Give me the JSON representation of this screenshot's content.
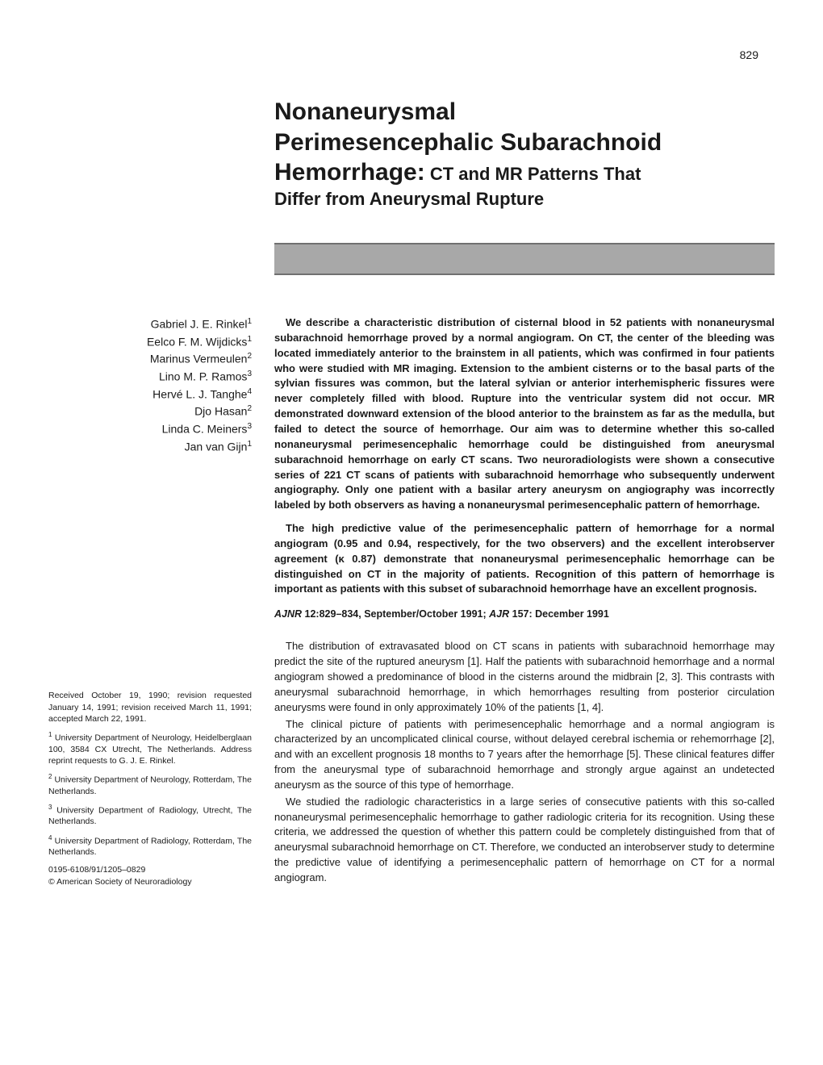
{
  "page_number": "829",
  "title": {
    "line1": "Nonaneurysmal",
    "line2": "Perimesencephalic Subarachnoid",
    "line3_bold": "Hemorrhage:",
    "line3_rest": " CT and MR Patterns That",
    "line4": "Differ from Aneurysmal Rupture"
  },
  "authors": [
    {
      "name": "Gabriel J. E. Rinkel",
      "aff": "1"
    },
    {
      "name": "Eelco F. M. Wijdicks",
      "aff": "1"
    },
    {
      "name": "Marinus Vermeulen",
      "aff": "2"
    },
    {
      "name": "Lino M. P. Ramos",
      "aff": "3"
    },
    {
      "name": "Hervé L. J. Tanghe",
      "aff": "4"
    },
    {
      "name": "Djo Hasan",
      "aff": "2"
    },
    {
      "name": "Linda C. Meiners",
      "aff": "3"
    },
    {
      "name": "Jan van Gijn",
      "aff": "1"
    }
  ],
  "abstract": {
    "p1": "We describe a characteristic distribution of cisternal blood in 52 patients with nonaneurysmal subarachnoid hemorrhage proved by a normal angiogram. On CT, the center of the bleeding was located immediately anterior to the brainstem in all patients, which was confirmed in four patients who were studied with MR imaging. Extension to the ambient cisterns or to the basal parts of the sylvian fissures was common, but the lateral sylvian or anterior interhemispheric fissures were never completely filled with blood. Rupture into the ventricular system did not occur. MR demonstrated downward extension of the blood anterior to the brainstem as far as the medulla, but failed to detect the source of hemorrhage. Our aim was to determine whether this so-called nonaneurysmal perimesencephalic hemorrhage could be distinguished from aneurysmal subarachnoid hemorrhage on early CT scans. Two neuroradiologists were shown a consecutive series of 221 CT scans of patients with subarachnoid hemorrhage who subsequently underwent angiography. Only one patient with a basilar artery aneurysm on angiography was incorrectly labeled by both observers as having a nonaneurysmal perimesencephalic pattern of hemorrhage.",
    "p2": "The high predictive value of the perimesencephalic pattern of hemorrhage for a normal angiogram (0.95 and 0.94, respectively, for the two observers) and the excellent interobserver agreement (κ 0.87) demonstrate that nonaneurysmal perimesencephalic hemorrhage can be distinguished on CT in the majority of patients. Recognition of this pattern of hemorrhage is important as patients with this subset of subarachnoid hemorrhage have an excellent prognosis."
  },
  "citation": {
    "ajnr": "AJNR",
    "ajnr_vol": " 12:829–834, September/October 1991; ",
    "ajr": "AJR",
    "ajr_vol": " 157: December 1991"
  },
  "body": {
    "p1": "The distribution of extravasated blood on CT scans in patients with subarachnoid hemorrhage may predict the site of the ruptured aneurysm [1]. Half the patients with subarachnoid hemorrhage and a normal angiogram showed a predominance of blood in the cisterns around the midbrain [2, 3]. This contrasts with aneurysmal subarachnoid hemorrhage, in which hemorrhages resulting from posterior circulation aneurysms were found in only approximately 10% of the patients [1, 4].",
    "p2": "The clinical picture of patients with perimesencephalic hemorrhage and a normal angiogram is characterized by an uncomplicated clinical course, without delayed cerebral ischemia or rehemorrhage [2], and with an excellent prognosis 18 months to 7 years after the hemorrhage [5]. These clinical features differ from the aneurysmal type of subarachnoid hemorrhage and strongly argue against an undetected aneurysm as the source of this type of hemorrhage.",
    "p3": "We studied the radiologic characteristics in a large series of consecutive patients with this so-called nonaneurysmal perimesencephalic hemorrhage to gather radiologic criteria for its recognition. Using these criteria, we addressed the question of whether this pattern could be completely distinguished from that of aneurysmal subarachnoid hemorrhage on CT. Therefore, we conducted an interobserver study to determine the predictive value of identifying a perimesencephalic pattern of hemorrhage on CT for a normal angiogram."
  },
  "footer": {
    "received": "Received October 19, 1990; revision requested January 14, 1991; revision received March 11, 1991; accepted March 22, 1991.",
    "aff1": "University Department of Neurology, Heidelberglaan 100, 3584 CX Utrecht, The Netherlands. Address reprint requests to G. J. E. Rinkel.",
    "aff2": "University Department of Neurology, Rotterdam, The Netherlands.",
    "aff3": "University Department of Radiology, Utrecht, The Netherlands.",
    "aff4": "University Department of Radiology, Rotterdam, The Netherlands.",
    "issn": "0195-6108/91/1205–0829",
    "copyright": "© American Society of Neuroradiology"
  },
  "colors": {
    "bar_fill": "#a8a8a8",
    "bar_border": "#707070",
    "text": "#1a1a1a",
    "background": "#ffffff"
  },
  "typography": {
    "title_main_pt": 30,
    "title_sub_pt": 22,
    "body_pt": 13,
    "footer_pt": 10.5,
    "author_pt": 14
  }
}
